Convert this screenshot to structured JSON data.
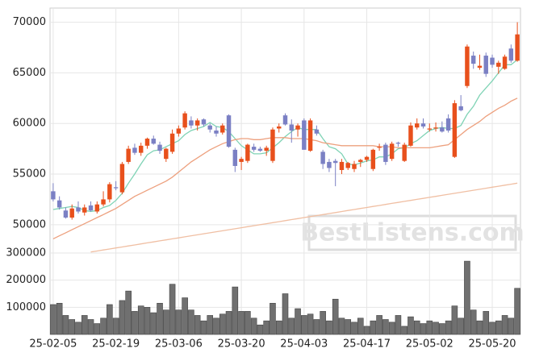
{
  "chart_data": {
    "type": "candlestick",
    "x": [
      "25-02-05",
      null,
      null,
      null,
      null,
      null,
      null,
      null,
      null,
      null,
      "25-02-19",
      null,
      null,
      null,
      null,
      null,
      null,
      null,
      null,
      null,
      "25-03-06",
      null,
      null,
      null,
      null,
      null,
      null,
      null,
      null,
      null,
      "25-03-20",
      null,
      null,
      null,
      null,
      null,
      null,
      null,
      null,
      null,
      "25-04-03",
      null,
      null,
      null,
      null,
      null,
      null,
      null,
      null,
      null,
      "25-04-17",
      null,
      null,
      null,
      null,
      null,
      null,
      null,
      null,
      null,
      "25-05-02",
      null,
      null,
      null,
      null,
      null,
      null,
      null,
      null,
      null,
      "25-05-20",
      null,
      null,
      null,
      null
    ],
    "open": [
      53300,
      52400,
      51400,
      50700,
      51700,
      51200,
      51900,
      51300,
      52000,
      52500,
      53700,
      53200,
      56200,
      57600,
      57100,
      57800,
      58500,
      57900,
      56500,
      57200,
      59000,
      59600,
      60300,
      59800,
      60400,
      59800,
      59300,
      59100,
      60800,
      57400,
      56200,
      56300,
      57700,
      57500,
      57300,
      56300,
      59500,
      60800,
      59900,
      59400,
      60300,
      57300,
      59400,
      57200,
      56200,
      56300,
      55400,
      55600,
      55500,
      56200,
      56400,
      55500,
      57600,
      57900,
      56500,
      58100,
      56300,
      57800,
      59600,
      60000,
      59400,
      59500,
      59600,
      60500,
      56700,
      61700,
      63700,
      66700,
      65500,
      66700,
      66500,
      65600,
      65400,
      67400,
      66200
    ],
    "high": [
      54100,
      52800,
      51700,
      52000,
      52300,
      52000,
      52300,
      52300,
      53300,
      54200,
      54300,
      56200,
      57800,
      58000,
      58100,
      58600,
      58800,
      58200,
      57600,
      59400,
      59800,
      61200,
      60700,
      60500,
      60500,
      60000,
      59700,
      60000,
      60900,
      57600,
      56700,
      58000,
      58000,
      57700,
      57800,
      59600,
      60000,
      61000,
      60400,
      60000,
      60500,
      60500,
      59800,
      57400,
      56500,
      56500,
      56500,
      56200,
      56300,
      56500,
      56800,
      57500,
      58000,
      58100,
      58200,
      58200,
      58100,
      60100,
      60500,
      60500,
      60000,
      60100,
      60200,
      60900,
      62300,
      62800,
      67800,
      67100,
      66800,
      67000,
      66800,
      66200,
      66800,
      67800,
      70000
    ],
    "low": [
      52300,
      51500,
      50600,
      50500,
      51100,
      50900,
      51300,
      51100,
      51800,
      52200,
      53400,
      53000,
      56000,
      56900,
      56800,
      57500,
      57900,
      57000,
      56200,
      57000,
      58700,
      59400,
      59500,
      59300,
      59700,
      59100,
      58700,
      58900,
      57600,
      55200,
      55400,
      56100,
      57200,
      57200,
      56800,
      56100,
      59100,
      59800,
      58100,
      58700,
      57400,
      57200,
      58800,
      55500,
      55200,
      53800,
      55000,
      55400,
      55200,
      55700,
      56200,
      55300,
      57300,
      55900,
      56300,
      57700,
      56200,
      57700,
      59400,
      59500,
      59200,
      59200,
      59100,
      59100,
      56600,
      61200,
      63500,
      65400,
      65300,
      64600,
      65500,
      64900,
      65300,
      66000,
      66100
    ],
    "close": [
      52500,
      51700,
      50700,
      51600,
      51300,
      51700,
      51400,
      52000,
      52500,
      54000,
      53600,
      56000,
      57500,
      57100,
      57800,
      58500,
      58000,
      57300,
      57500,
      59000,
      59500,
      61000,
      59800,
      60300,
      59900,
      59400,
      59000,
      59800,
      57700,
      55800,
      56500,
      57900,
      57400,
      57300,
      57600,
      59400,
      59700,
      59900,
      59300,
      59800,
      57400,
      60300,
      59000,
      56000,
      55600,
      56100,
      56200,
      56100,
      56000,
      56400,
      56700,
      57400,
      57700,
      56200,
      58000,
      58000,
      57900,
      59800,
      60000,
      59700,
      59500,
      59600,
      59200,
      59300,
      62000,
      61300,
      67600,
      65900,
      65700,
      64900,
      65800,
      66000,
      66600,
      66200,
      68800
    ],
    "up_color": "#e8501c",
    "down_color": "#7b80c4",
    "averages": [
      {
        "color": "#7fd3b5",
        "values": [
          51500,
          51600,
          51700,
          51800,
          51700,
          51400,
          51300,
          51400,
          51700,
          51900,
          52400,
          53100,
          54100,
          55000,
          56000,
          56900,
          57300,
          57400,
          57700,
          58000,
          58300,
          58900,
          59300,
          59500,
          59700,
          60100,
          59700,
          59600,
          59200,
          58500,
          57800,
          57400,
          57000,
          57000,
          57100,
          57600,
          58100,
          58700,
          59200,
          59600,
          59400,
          59400,
          59400,
          58500,
          57700,
          57500,
          57000,
          56000,
          55900,
          56100,
          56300,
          56400,
          56700,
          56700,
          57000,
          57500,
          57600,
          58000,
          58300,
          58800,
          59300,
          59500,
          59600,
          59500,
          59500,
          59800,
          60900,
          61700,
          62800,
          63500,
          64200,
          65000,
          65800,
          65800,
          66300
        ]
      },
      {
        "color": "#eda07e",
        "values": [
          48600,
          48900,
          49200,
          49500,
          49800,
          50100,
          50400,
          50700,
          51000,
          51300,
          51600,
          52000,
          52400,
          52800,
          53100,
          53400,
          53700,
          54000,
          54300,
          54700,
          55200,
          55700,
          56200,
          56600,
          57000,
          57400,
          57700,
          58000,
          58200,
          58400,
          58500,
          58500,
          58400,
          58400,
          58500,
          58600,
          58600,
          58600,
          58500,
          58500,
          58500,
          58400,
          58300,
          58100,
          58000,
          57900,
          57800,
          57800,
          57800,
          57800,
          57800,
          57800,
          57700,
          57700,
          57700,
          57600,
          57600,
          57600,
          57600,
          57600,
          57600,
          57700,
          57800,
          57900,
          58400,
          58900,
          59400,
          59800,
          60200,
          60700,
          61100,
          61500,
          61800,
          62200,
          62500
        ]
      },
      {
        "color": "#f0bfa3",
        "values": [
          null,
          null,
          null,
          null,
          null,
          null,
          47300,
          47400,
          47500,
          47600,
          47700,
          47800,
          47900,
          48000,
          48100,
          48200,
          48300,
          48400,
          48500,
          48600,
          48700,
          48800,
          48900,
          49000,
          49100,
          49200,
          49300,
          49400,
          49500,
          49600,
          49700,
          49800,
          49900,
          50000,
          50100,
          50200,
          50300,
          50400,
          50500,
          50600,
          50700,
          50800,
          50900,
          51000,
          51100,
          51200,
          51300,
          51400,
          51500,
          51600,
          51700,
          51800,
          51900,
          52000,
          52100,
          52200,
          52300,
          52400,
          52500,
          52600,
          52700,
          52800,
          52900,
          53000,
          53100,
          53200,
          53300,
          53400,
          53500,
          53600,
          53700,
          53800,
          53900,
          54000,
          54100
        ]
      }
    ],
    "ylim": [
      47200,
      71400
    ],
    "yticks": [
      50000,
      55000,
      60000,
      65000,
      70000
    ],
    "volume": {
      "color": "#707070",
      "values": [
        110000,
        115000,
        70000,
        55000,
        45000,
        70000,
        55000,
        40000,
        60000,
        110000,
        60000,
        125000,
        160000,
        85000,
        105000,
        100000,
        80000,
        115000,
        90000,
        185000,
        90000,
        135000,
        90000,
        70000,
        50000,
        70000,
        60000,
        75000,
        85000,
        175000,
        85000,
        85000,
        60000,
        35000,
        50000,
        115000,
        50000,
        150000,
        60000,
        95000,
        70000,
        75000,
        55000,
        85000,
        50000,
        130000,
        60000,
        55000,
        45000,
        60000,
        30000,
        50000,
        70000,
        55000,
        45000,
        70000,
        30000,
        65000,
        50000,
        40000,
        50000,
        45000,
        40000,
        50000,
        105000,
        60000,
        270000,
        90000,
        50000,
        85000,
        45000,
        50000,
        70000,
        60000,
        170000
      ],
      "ylim": [
        0,
        300000
      ],
      "yticks": [
        100000,
        200000,
        300000
      ]
    },
    "watermark": "BestListens.com",
    "grid": true
  }
}
